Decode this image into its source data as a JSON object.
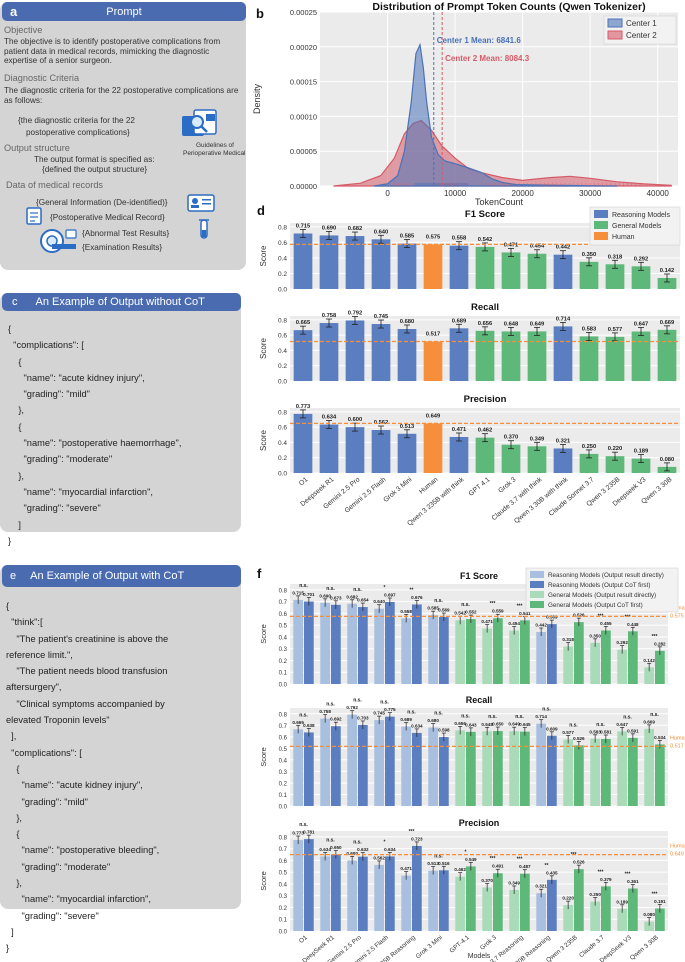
{
  "panel_letters": {
    "a": "a",
    "b": "b",
    "c": "c",
    "d": "d",
    "e": "e",
    "f": "f"
  },
  "colors": {
    "header_blue": "#4a6bb0",
    "box_grey": "#d4d4d4",
    "reasoning": "#5b7ec1",
    "general": "#5db87a",
    "human": "#f58f3c",
    "reasoning_light": "#a8bfe0",
    "general_light": "#a9dbb9"
  },
  "prompt_panel": {
    "header": "Prompt",
    "objective_title": "Objective",
    "objective_text": "The objective is to identify postoperative complications from patient data in medical records, mimicking the diagnostic expertise of a senior surgeon.",
    "criteria_title": "Diagnostic Criteria",
    "criteria_text": "The diagnostic criteria for the 22 postoperative complications are as follows:",
    "criteria_placeholder_1": "{the diagnostic criteria for the 22",
    "criteria_placeholder_2": "postoperative complications}",
    "guidelines_label_1": "Guidelines of",
    "guidelines_label_2": "Perioperative Medical",
    "output_title": "Output structure",
    "output_text": "The output format is specified as:",
    "output_placeholder": "{defined the output structure}",
    "records_title": "Data of medical records",
    "rec1": "{General Information (De-identified)}",
    "rec2": "{Postoperative Medical Record}",
    "rec3": "{Abnormal Test Results}",
    "rec4": "{Examination Results}"
  },
  "panel_c": {
    "header": "An Example of Output without CoT",
    "lines": [
      "{",
      "  \"complications\": [",
      "    {",
      "      \"name\": \"acute kidney injury\",",
      "      \"grading\": \"mild\"",
      "    },",
      "    {",
      "      \"name\": \"postoperative haemorrhage\",",
      "      \"grading\": \"moderate\"",
      "    },",
      "      \"name\": \"myocardial infarction\",",
      "      \"grading\": \"severe\"",
      "    ]",
      "}"
    ]
  },
  "panel_e": {
    "header": "An Example of Output with CoT",
    "lines": [
      "{",
      "  \"think\":[",
      "    \"The patient's creatinine is above the",
      "reference limit.\",",
      "    \"The patient needs blood transfusion",
      "aftersurgery\",",
      "    \"Clinical symptoms accompanied by",
      "elevated Troponin levels\"",
      "  ],",
      "  \"complications\": [",
      "    {",
      "      \"name\": \"acute kidney injury\",",
      "      \"grading\": \"mild\"",
      "    },",
      "    {",
      "      \"name\": \"postoperative bleeding\",",
      "      \"grading\": \"moderate\"",
      "    },",
      "      \"name\": \"myocardial infarction\",",
      "      \"grading\": \"severe\"",
      "  ]",
      "}"
    ]
  },
  "chart_data": [
    {
      "type": "area",
      "id": "b",
      "title": "Distribution of Prompt Token Counts (Qwen Tokenizer)",
      "xlabel": "TokenCount",
      "ylabel": "Density",
      "xlim": [
        -10000,
        43000
      ],
      "ylim": [
        0,
        0.00025
      ],
      "xticks": [
        0,
        10000,
        20000,
        30000,
        40000
      ],
      "yticks": [
        0,
        5e-05,
        0.0001,
        0.00015,
        0.0002,
        0.00025
      ],
      "ytick_labels": [
        "0.00000",
        "0.00005",
        "0.00010",
        "0.00015",
        "0.00020",
        "0.00025"
      ],
      "series": [
        {
          "name": "Center 1",
          "color": "#4a72b8",
          "mean": 6841.6,
          "mean_label": "Center 1 Mean: 6841.6",
          "x": [
            -2000,
            0,
            1500,
            2500,
            3500,
            4200,
            4800,
            5300,
            5800,
            6500,
            7500,
            8500,
            10000,
            12000,
            14000,
            15500,
            17000,
            19000,
            22000,
            26000,
            30000,
            34000
          ],
          "y": [
            0,
            3e-06,
            1.5e-05,
            5e-05,
            0.00012,
            0.00019,
            0.000203,
            0.00017,
            0.00012,
            7e-05,
            4.5e-05,
            3.6e-05,
            3.2e-05,
            2.6e-05,
            1.9e-05,
            1e-05,
            5e-06,
            2e-06,
            1.5e-06,
            1e-06,
            5e-07,
            0
          ]
        },
        {
          "name": "Center 2",
          "color": "#d65a67",
          "mean": 8084.3,
          "mean_label": "Center 2 Mean: 8084.3",
          "x": [
            -8000,
            -4000,
            -1000,
            1000,
            2500,
            3800,
            5000,
            6500,
            8000,
            10000,
            12000,
            14000,
            17000,
            20000,
            24000,
            27000,
            30000,
            34000,
            38000,
            42000
          ],
          "y": [
            0,
            4e-06,
            1.5e-05,
            4e-05,
            7.5e-05,
            9e-05,
            9.4e-05,
            8e-05,
            5.8e-05,
            4e-05,
            2.5e-05,
            1.9e-05,
            1.2e-05,
            8e-06,
            1.2e-05,
            1.4e-05,
            1.1e-05,
            6e-06,
            3e-06,
            1e-06
          ]
        }
      ]
    },
    {
      "type": "bar",
      "id": "d",
      "categories": [
        "O1",
        "Deepseek R1",
        "Gemini 2.5 Pro",
        "Gemini 2.5 Flash",
        "Grok 3 Mini",
        "Human",
        "Qwen 3 235B with think",
        "GPT 4.1",
        "Grok 3",
        "Claude 3.7 with think",
        "Qwen 3 30B with think",
        "Claude Sonnet 3.7",
        "Qwen 3 235B",
        "Deepseek V3",
        "Qwen 3 30B"
      ],
      "groups": [
        "reasoning",
        "reasoning",
        "reasoning",
        "reasoning",
        "reasoning",
        "human",
        "reasoning",
        "general",
        "general",
        "general",
        "reasoning",
        "general",
        "general",
        "general",
        "general"
      ],
      "legend": [
        "Reasoning Models",
        "General Models",
        "Human"
      ],
      "ylabel": "Score",
      "subplots": [
        {
          "title": "F1 Score",
          "human_line": 0.575,
          "values": [
            0.715,
            0.69,
            0.682,
            0.64,
            0.585,
            0.575,
            0.558,
            0.542,
            0.471,
            0.454,
            0.442,
            0.35,
            0.318,
            0.292,
            0.142
          ],
          "labels": [
            "0.715",
            "0.690",
            "0.682",
            "0.640",
            "0.585",
            "0.575",
            "0.558",
            "0.542",
            "0.471",
            "0.454",
            "0.442",
            "0.350",
            "0.318",
            "0.292",
            "0.142"
          ]
        },
        {
          "title": "Recall",
          "human_line": 0.517,
          "values": [
            0.665,
            0.758,
            0.792,
            0.745,
            0.68,
            0.517,
            0.689,
            0.656,
            0.648,
            0.649,
            0.714,
            0.583,
            0.577,
            0.647,
            0.669
          ],
          "labels": [
            "0.665",
            "0.758",
            "0.792",
            "0.745",
            "0.680",
            "0.517",
            "0.689",
            "0.656",
            "0.648",
            "0.649",
            "0.714",
            "0.583",
            "0.577",
            "0.647",
            "0.669"
          ]
        },
        {
          "title": "Precision",
          "human_line": 0.649,
          "values": [
            0.773,
            0.634,
            0.6,
            0.562,
            0.513,
            0.649,
            0.471,
            0.462,
            0.37,
            0.349,
            0.321,
            0.25,
            0.22,
            0.189,
            0.08
          ],
          "labels": [
            "0.773",
            "0.634",
            "0.600",
            "0.562",
            "0.513",
            "0.649",
            "0.471",
            "0.462",
            "0.370",
            "0.349",
            "0.321",
            "0.250",
            "0.220",
            "0.189",
            "0.080"
          ]
        }
      ],
      "yticks": [
        0.0,
        0.2,
        0.4,
        0.6,
        0.8
      ],
      "ytick_labels": [
        "0.0",
        "0.2",
        "0.4",
        "0.6",
        "0.8"
      ]
    },
    {
      "type": "bar",
      "id": "f",
      "categories": [
        "O1",
        "DeepSeek R1",
        "Gemini 2.5 Pro",
        "Gemini 2.5 Flash",
        "Qwen 3 235B Reasoning",
        "Grok 3 Mini",
        "GPT-4.1",
        "Grok 3",
        "Claude 3.7 Reasoning",
        "Qwen 3 30B Reasoning",
        "Qwen 3 235B",
        "Claude 3.7",
        "DeepSeek V3",
        "Qwen 3 30B"
      ],
      "groups": [
        "reasoning",
        "reasoning",
        "reasoning",
        "reasoning",
        "reasoning",
        "reasoning",
        "general",
        "general",
        "general",
        "reasoning",
        "general",
        "general",
        "general",
        "general"
      ],
      "legend": [
        "Reasoning Models (Output result directly)",
        "Reasoning Models (Output CoT first)",
        "General Models (Output result directly)",
        "General Models (Output CoT first)"
      ],
      "xlabel": "Models",
      "ylabel": "Score",
      "human_label": "Human",
      "subplots": [
        {
          "title": "F1 Score",
          "human_line": 0.575,
          "human_value_label": "0.575",
          "direct": [
            0.715,
            0.69,
            0.682,
            0.64,
            0.558,
            0.585,
            0.542,
            0.471,
            0.454,
            0.442,
            0.318,
            0.35,
            0.292,
            0.142
          ],
          "cot": [
            0.701,
            0.673,
            0.654,
            0.697,
            0.676,
            0.569,
            0.552,
            0.559,
            0.541,
            0.509,
            0.526,
            0.455,
            0.448,
            0.282
          ],
          "direct_labels": [
            "0.715",
            "0.690",
            "0.682",
            "0.640",
            "0.558",
            "0.585",
            "0.542",
            "0.471",
            "0.454",
            "0.442",
            "0.318",
            "0.350",
            "0.292",
            "0.142"
          ],
          "cot_labels": [
            "0.701",
            "0.673",
            "0.654",
            "0.697",
            "0.676",
            "0.569",
            "0.552",
            "0.559",
            "0.541",
            "0.509",
            "0.526",
            "0.455",
            "0.448",
            "0.282"
          ],
          "sig": [
            "n.s.",
            "n.s.",
            "n.s.",
            "*",
            "**",
            "n.s.",
            "n.s.",
            "***",
            "***",
            "n.s.",
            "***",
            "***",
            "***",
            "***"
          ]
        },
        {
          "title": "Recall",
          "human_line": 0.517,
          "human_value_label": "0.517",
          "direct": [
            0.665,
            0.758,
            0.792,
            0.745,
            0.689,
            0.68,
            0.656,
            0.648,
            0.649,
            0.714,
            0.577,
            0.583,
            0.647,
            0.669
          ],
          "cot": [
            0.638,
            0.692,
            0.703,
            0.775,
            0.634,
            0.598,
            0.643,
            0.65,
            0.645,
            0.609,
            0.526,
            0.581,
            0.591,
            0.534
          ],
          "direct_labels": [
            "0.665",
            "0.758",
            "0.792",
            "0.745",
            "0.689",
            "0.680",
            "0.656",
            "0.648",
            "0.649",
            "0.714",
            "0.577",
            "0.583",
            "0.647",
            "0.669"
          ],
          "cot_labels": [
            "0.638",
            "0.692",
            "0.703",
            "0.775",
            "0.634",
            "0.598",
            "0.643",
            "0.650",
            "0.645",
            "0.609",
            "0.526",
            "0.581",
            "0.591",
            "0.534"
          ],
          "sig": [
            "n.s.",
            "n.s.",
            "n.s.",
            "n.s.",
            "n.s.",
            "n.s.",
            "n.s.",
            "n.s.",
            "n.s.",
            "n.s.",
            "n.s.",
            "n.s.",
            "n.s.",
            "n.s."
          ]
        },
        {
          "title": "Precision",
          "human_line": 0.649,
          "human_value_label": "0.649",
          "direct": [
            0.773,
            0.634,
            0.6,
            0.562,
            0.471,
            0.513,
            0.462,
            0.37,
            0.349,
            0.321,
            0.22,
            0.25,
            0.189,
            0.08
          ],
          "cot": [
            0.781,
            0.65,
            0.632,
            0.634,
            0.723,
            0.516,
            0.549,
            0.491,
            0.487,
            0.435,
            0.526,
            0.379,
            0.361,
            0.191
          ],
          "direct_labels": [
            "0.773",
            "0.634",
            "0.600",
            "0.562",
            "0.471",
            "0.513",
            "0.462",
            "0.370",
            "0.349",
            "0.321",
            "0.220",
            "0.250",
            "0.189",
            "0.080"
          ],
          "cot_labels": [
            "0.781",
            "0.650",
            "0.632",
            "0.634",
            "0.723",
            "0.516",
            "0.549",
            "0.491",
            "0.487",
            "0.435",
            "0.526",
            "0.379",
            "0.361",
            "0.191"
          ],
          "sig": [
            "n.s.",
            "n.s.",
            "n.s.",
            "*",
            "***",
            "n.s.",
            "*",
            "***",
            "***",
            "**",
            "***",
            "***",
            "***",
            "***"
          ]
        }
      ],
      "yticks": [
        0.0,
        0.1,
        0.2,
        0.3,
        0.4,
        0.5,
        0.6,
        0.7,
        0.8
      ],
      "ytick_labels": [
        "0.0",
        "0.1",
        "0.2",
        "0.3",
        "0.4",
        "0.5",
        "0.6",
        "0.7",
        "0.8"
      ]
    }
  ]
}
